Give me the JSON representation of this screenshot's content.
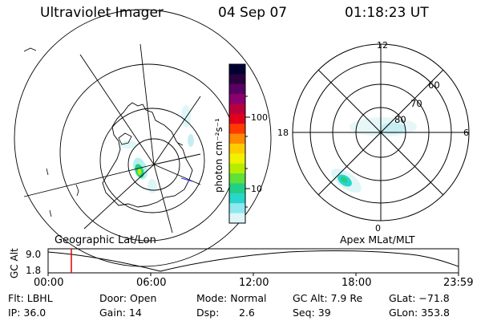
{
  "header": {
    "title": "Ultraviolet Imager",
    "date": "04 Sep 07",
    "time": "01:18:23 UT"
  },
  "colorbar": {
    "label": "photon cm⁻²s⁻¹",
    "ticks": [
      "100",
      "10"
    ],
    "colors": [
      "#000033",
      "#2a003f",
      "#5a0063",
      "#8a006f",
      "#b8003a",
      "#e0001e",
      "#ff3a00",
      "#ff8a00",
      "#ffcc00",
      "#f2f200",
      "#b6ec00",
      "#5fe03a",
      "#21cf86",
      "#2ad6cc",
      "#8ee8ee",
      "#dff6f8"
    ]
  },
  "left_panel": {
    "caption": "Geographic Lat/Lon"
  },
  "right_panel": {
    "caption": "Apex MLat/MLT",
    "mlt_labels": {
      "top": "12",
      "bottom": "0",
      "left": "18",
      "right": "6"
    },
    "lat_labels": [
      "60",
      "70",
      "80"
    ]
  },
  "timeline": {
    "axis_label": "GC Alt",
    "y_ticks": [
      "9.0",
      "1.8"
    ],
    "x_ticks": [
      "00:00",
      "06:00",
      "12:00",
      "18:00",
      "23:59"
    ]
  },
  "info": {
    "filter": "Flt: LBHL",
    "door": "Door: Open",
    "mode": "Mode: Normal",
    "gc_alt": "GC Alt: 7.9 Re",
    "glat": "GLat: −71.8",
    "ip": "IP: 36.0",
    "gain": "Gain: 14",
    "dsp_label": "Dsp:",
    "dsp_value": "2.6",
    "seq": "Seq: 39",
    "glon": "GLon: 353.8"
  }
}
